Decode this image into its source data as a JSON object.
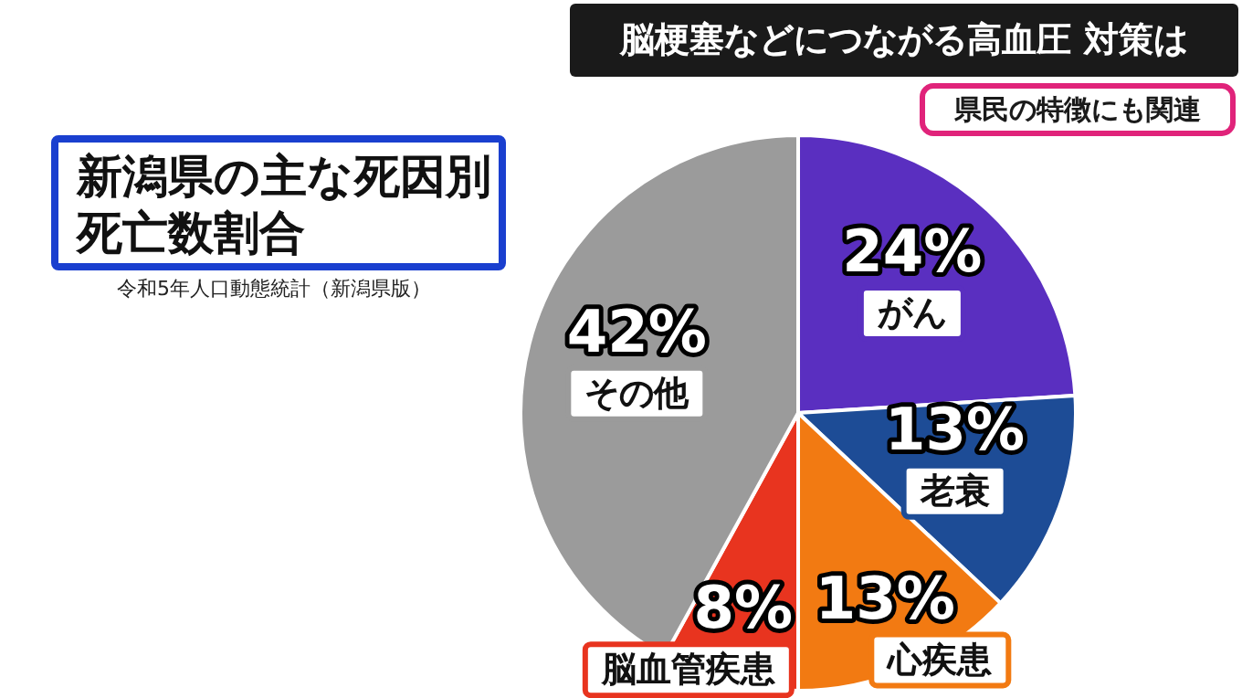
{
  "chart_data": {
    "type": "pie",
    "title": "新潟県の主な死因別死亡数割合",
    "subtitle": "令和5年人口動態統計（新潟県版）",
    "annotations": [
      "脳梗塞などにつながる高血圧 対策は",
      "県民の特徴にも関連"
    ],
    "categories": [
      "がん",
      "老衰",
      "心疾患",
      "脳血管疾患",
      "その他"
    ],
    "values": [
      24,
      13,
      13,
      8,
      42
    ],
    "colors": [
      "#5a2fc0",
      "#1d4c96",
      "#f27a12",
      "#e8341f",
      "#9b9b9b"
    ],
    "data_labels": true,
    "value_labels": [
      "24%",
      "13%",
      "13%",
      "8%",
      "42%"
    ]
  }
}
